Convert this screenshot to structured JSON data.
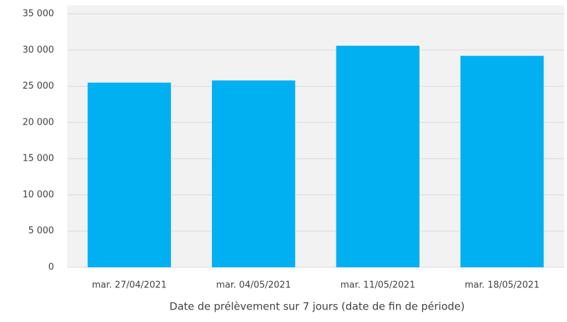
{
  "chart_data": {
    "type": "bar",
    "x_label": "Date de prélèvement sur 7 jours (date de fin de période)",
    "categories": [
      "mar. 27/04/2021",
      "mar. 04/05/2021",
      "mar. 11/05/2021",
      "mar. 18/05/2021"
    ],
    "values": [
      25500,
      25800,
      30600,
      29200
    ],
    "color": "#00b0f0",
    "ylim": [
      0,
      35000
    ],
    "yticks": [
      0,
      {
        "value": 5000,
        "label": "5 000"
      },
      {
        "value": 10000,
        "label": "10 000"
      },
      {
        "value": 15000,
        "label": "15 000"
      },
      {
        "value": 20000,
        "label": "20 000"
      },
      {
        "value": 25000,
        "label": "25 000"
      },
      {
        "value": 30000,
        "label": "30 000"
      },
      {
        "value": 35000,
        "label": "35 000"
      }
    ],
    "grid": true
  }
}
